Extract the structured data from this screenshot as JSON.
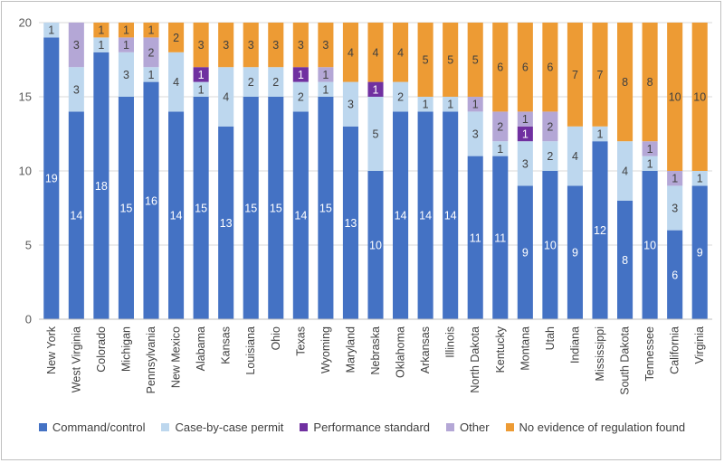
{
  "chart_data": {
    "type": "bar",
    "stacked": true,
    "categories": [
      "New York",
      "West Virginia",
      "Colorado",
      "Michigan",
      "Pennsylvania",
      "New Mexico",
      "Alabama",
      "Kansas",
      "Louisiana",
      "Ohio",
      "Texas",
      "Wyoming",
      "Maryland",
      "Nebraska",
      "Oklahoma",
      "Arkansas",
      "Illinois",
      "North Dakota",
      "Kentucky",
      "Montana",
      "Utah",
      "Indiana",
      "Mississippi",
      "South Dakota",
      "Tennessee",
      "California",
      "Virginia"
    ],
    "series": [
      {
        "name": "Command/control",
        "color": "#4472c4",
        "label_color": "#ffffff",
        "values": [
          19,
          14,
          18,
          15,
          16,
          14,
          15,
          13,
          15,
          15,
          14,
          15,
          13,
          10,
          14,
          14,
          14,
          11,
          11,
          9,
          10,
          9,
          12,
          8,
          10,
          6,
          9
        ]
      },
      {
        "name": "Case-by-case permit",
        "color": "#bdd7ee",
        "label_color": "#404040",
        "values": [
          1,
          3,
          1,
          3,
          1,
          4,
          1,
          4,
          2,
          2,
          2,
          1,
          3,
          5,
          2,
          1,
          1,
          3,
          1,
          3,
          2,
          4,
          1,
          4,
          1,
          3,
          1
        ]
      },
      {
        "name": "Performance standard",
        "color": "#7030a0",
        "label_color": "#ffffff",
        "values": [
          0,
          0,
          0,
          0,
          0,
          0,
          1,
          0,
          0,
          0,
          1,
          0,
          0,
          1,
          0,
          0,
          0,
          0,
          0,
          1,
          0,
          0,
          0,
          0,
          0,
          0,
          0
        ]
      },
      {
        "name": "Other",
        "color": "#b4a7d6",
        "label_color": "#404040",
        "values": [
          0,
          3,
          0,
          1,
          2,
          0,
          0,
          0,
          0,
          0,
          0,
          1,
          0,
          0,
          0,
          0,
          0,
          1,
          2,
          1,
          2,
          0,
          0,
          0,
          1,
          1,
          0
        ]
      },
      {
        "name": "No evidence of regulation found",
        "color": "#ed9b34",
        "label_color": "#404040",
        "values": [
          0,
          0,
          1,
          1,
          1,
          2,
          3,
          3,
          3,
          3,
          3,
          3,
          4,
          4,
          4,
          5,
          5,
          5,
          6,
          6,
          6,
          7,
          7,
          8,
          8,
          10,
          10
        ]
      }
    ],
    "ylim": [
      0,
      20
    ],
    "yticks": [
      "0",
      "5",
      "10",
      "15",
      "20"
    ],
    "ytick_values": [
      0,
      5,
      10,
      15,
      20
    ],
    "grid": true,
    "legend_position": "bottom",
    "title": "",
    "xlabel": "",
    "ylabel": ""
  }
}
